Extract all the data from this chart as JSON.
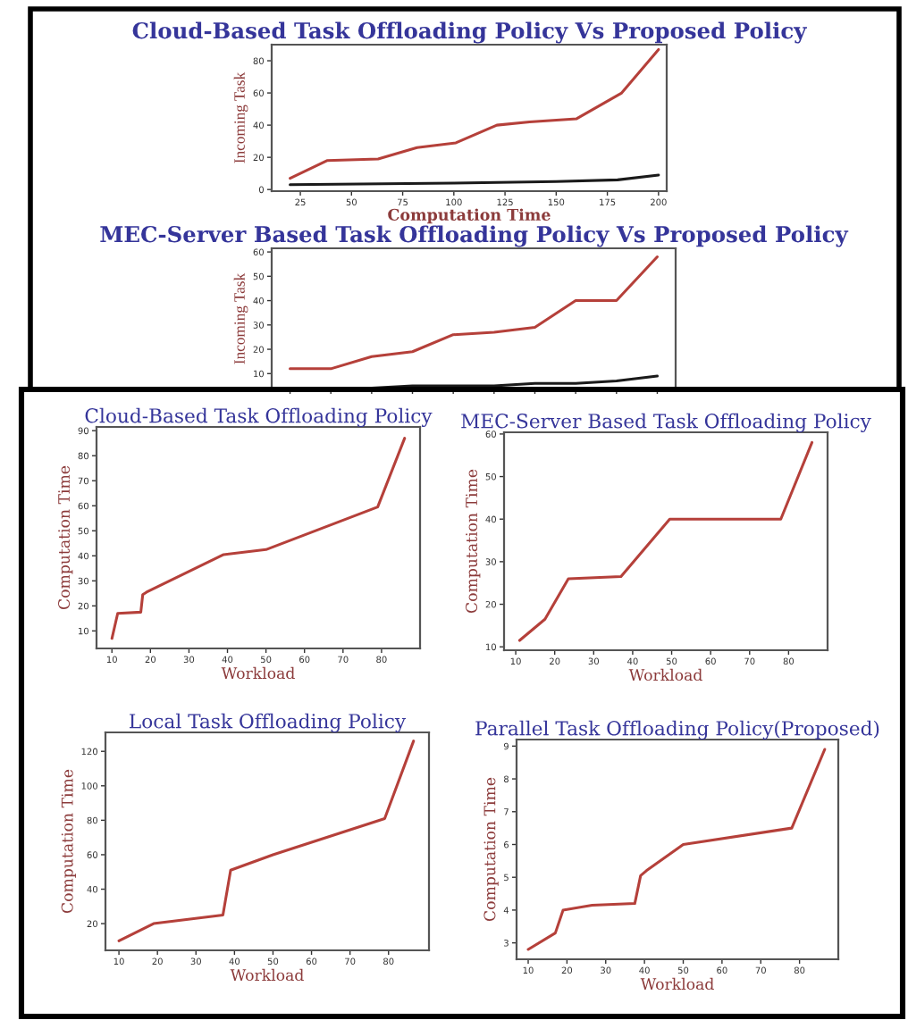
{
  "chart_data": [
    {
      "type": "line",
      "title": "Cloud-Based Task Offloading Policy Vs Proposed Policy",
      "xlabel": "Computation Time",
      "ylabel": "Incoming Task",
      "xlim": [
        11,
        204
      ],
      "ylim": [
        -1,
        90
      ],
      "xticks": [
        25,
        50,
        75,
        100,
        125,
        150,
        175,
        200
      ],
      "yticks": [
        0,
        20,
        40,
        60,
        80
      ],
      "series": [
        {
          "color": "#b5403a",
          "x": [
            20,
            38,
            63,
            82,
            101,
            121,
            137,
            160,
            182,
            200
          ],
          "values": [
            7,
            18,
            19,
            26,
            29,
            40,
            42,
            44,
            60,
            87
          ]
        },
        {
          "color": "#1a1a1a",
          "x": [
            20,
            100,
            150,
            180,
            200
          ],
          "values": [
            3,
            4,
            5,
            6,
            9
          ]
        }
      ]
    },
    {
      "type": "line",
      "title": "MEC-Server Based Task Offloading Policy Vs Proposed Policy",
      "ylabel": "Incoming Task",
      "categories": [
        null,
        null,
        null,
        null,
        null,
        null,
        null,
        null,
        null,
        null
      ],
      "ylim": [
        3.5,
        61.5
      ],
      "yticks": [
        10,
        20,
        30,
        40,
        50,
        60
      ],
      "tick_labels": "y",
      "series": [
        {
          "color": "#b5403a",
          "values": [
            12,
            12,
            17,
            19,
            26,
            27,
            29,
            40,
            40,
            58
          ]
        },
        {
          "color": "#1a1a1a",
          "values": [
            null,
            4,
            4,
            5,
            5,
            5,
            6,
            6,
            7,
            9
          ]
        }
      ]
    },
    {
      "type": "line",
      "title": "Cloud-Based Task Offloading Policy",
      "xlabel": "Workload",
      "ylabel": "Computation Time",
      "xlim": [
        6,
        90
      ],
      "ylim": [
        3,
        91.5
      ],
      "xticks": [
        10,
        20,
        30,
        40,
        50,
        60,
        70,
        80
      ],
      "yticks": [
        10,
        20,
        30,
        40,
        50,
        60,
        70,
        80,
        90
      ],
      "series": [
        {
          "color": "#b5403a",
          "x": [
            10,
            11.5,
            17.5,
            18,
            19,
            39,
            50,
            79,
            86
          ],
          "values": [
            7,
            17,
            17.5,
            24.5,
            25.5,
            40.5,
            42.5,
            59.5,
            87
          ]
        }
      ]
    },
    {
      "type": "line",
      "title": "MEC-Server Based Task Offloading Policy",
      "xlabel": "Workload",
      "ylabel": "Computation Time",
      "xlim": [
        7,
        90
      ],
      "ylim": [
        9.2,
        60.4
      ],
      "xticks": [
        10,
        20,
        30,
        40,
        50,
        60,
        70,
        80
      ],
      "yticks": [
        10,
        20,
        30,
        40,
        50,
        60
      ],
      "series": [
        {
          "color": "#b5403a",
          "x": [
            11,
            17.5,
            23.5,
            37,
            49.5,
            78,
            86
          ],
          "values": [
            11.5,
            16.5,
            26,
            26.5,
            40,
            40,
            58
          ]
        }
      ]
    },
    {
      "type": "line",
      "title": "Local Task Offloading Policy",
      "xlabel": "Workload",
      "ylabel": "Computation Time",
      "xlim": [
        6.5,
        90.5
      ],
      "ylim": [
        4.5,
        131
      ],
      "xticks": [
        10,
        20,
        30,
        40,
        50,
        60,
        70,
        80
      ],
      "yticks": [
        20,
        40,
        60,
        80,
        100,
        120
      ],
      "series": [
        {
          "color": "#b5403a",
          "x": [
            10,
            19,
            37,
            39,
            50,
            79,
            86.5
          ],
          "values": [
            10,
            20,
            25,
            51,
            60,
            81,
            126
          ]
        }
      ]
    },
    {
      "type": "line",
      "title": "Parallel Task Offloading Policy(Proposed)",
      "xlabel": "Workload",
      "ylabel": "Computation Time",
      "xlim": [
        7,
        90
      ],
      "ylim": [
        2.5,
        9.2
      ],
      "xticks": [
        10,
        20,
        30,
        40,
        50,
        60,
        70,
        80
      ],
      "yticks": [
        3,
        4,
        5,
        6,
        7,
        8,
        9
      ],
      "series": [
        {
          "color": "#b5403a",
          "x": [
            10,
            17,
            19,
            26.5,
            37.5,
            39,
            40.5,
            50,
            78,
            86.5
          ],
          "values": [
            2.8,
            3.3,
            4,
            4.15,
            4.2,
            5.05,
            5.2,
            6,
            6.5,
            8.9
          ]
        }
      ]
    }
  ]
}
